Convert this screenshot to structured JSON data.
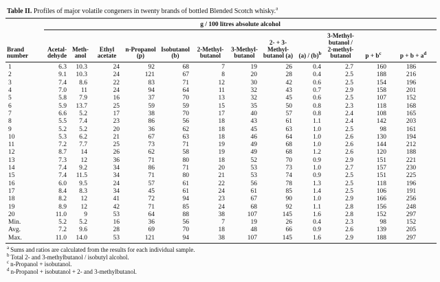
{
  "table": {
    "title": {
      "label": "Table II.",
      "text": "Profiles of major volatile congeners in twenty brands of bottled Blended Scotch whisky.",
      "sup": "a"
    },
    "unit_header": "g / 100 litres absolute alcohol",
    "columns": [
      {
        "label": "Brand\nnumber",
        "sup": ""
      },
      {
        "label": "Acetal-\ndehyde",
        "sup": ""
      },
      {
        "label": "Meth-\nanol",
        "sup": ""
      },
      {
        "label": "Ethyl\nacetate",
        "sup": ""
      },
      {
        "label": "n-Propanol\n(p)",
        "sup": ""
      },
      {
        "label": "Isobutanol\n(b)",
        "sup": ""
      },
      {
        "label": "2-Methyl-\nbutanol",
        "sup": ""
      },
      {
        "label": "3-Methyl-\nbutanol",
        "sup": ""
      },
      {
        "label": "2- + 3-\nMethyl-\nbutanol (a)",
        "sup": ""
      },
      {
        "label": "(a) / (b)",
        "sup": "b"
      },
      {
        "label": "3-Methyl-\nbutanol /\n2-methyl-\nbutanol",
        "sup": ""
      },
      {
        "label": "p + b",
        "sup": "c"
      },
      {
        "label": "p + b + a",
        "sup": "d"
      }
    ],
    "rows": [
      [
        "1",
        "6.3",
        "10.3",
        "24",
        "92",
        "68",
        "7",
        "19",
        "26",
        "0.4",
        "2.7",
        "160",
        "186"
      ],
      [
        "2",
        "9.1",
        "10.3",
        "24",
        "121",
        "67",
        "8",
        "20",
        "28",
        "0.4",
        "2.5",
        "188",
        "216"
      ],
      [
        "3",
        "7.4",
        "8.6",
        "22",
        "83",
        "71",
        "12",
        "30",
        "42",
        "0.6",
        "2.5",
        "154",
        "196"
      ],
      [
        "4",
        "7.0",
        "11",
        "24",
        "94",
        "64",
        "11",
        "32",
        "43",
        "0.7",
        "2.9",
        "158",
        "201"
      ],
      [
        "5",
        "5.8",
        "7.9",
        "16",
        "37",
        "70",
        "13",
        "32",
        "45",
        "0.6",
        "2.5",
        "107",
        "152"
      ],
      [
        "6",
        "5.9",
        "13.7",
        "25",
        "59",
        "59",
        "15",
        "35",
        "50",
        "0.8",
        "2.3",
        "118",
        "168"
      ],
      [
        "7",
        "6.6",
        "5.2",
        "17",
        "38",
        "70",
        "17",
        "40",
        "57",
        "0.8",
        "2.4",
        "108",
        "165"
      ],
      [
        "8",
        "5.5",
        "7.4",
        "23",
        "86",
        "56",
        "18",
        "43",
        "61",
        "1.1",
        "2.4",
        "142",
        "203"
      ],
      [
        "9",
        "5.2",
        "5.2",
        "20",
        "36",
        "62",
        "18",
        "45",
        "63",
        "1.0",
        "2.5",
        "98",
        "161"
      ],
      [
        "10",
        "5.3",
        "6.2",
        "21",
        "67",
        "63",
        "18",
        "46",
        "64",
        "1.0",
        "2.6",
        "130",
        "194"
      ],
      [
        "11",
        "7.2",
        "7.7",
        "25",
        "73",
        "71",
        "19",
        "49",
        "68",
        "1.0",
        "2.6",
        "144",
        "212"
      ],
      [
        "12",
        "8.7",
        "14",
        "26",
        "62",
        "58",
        "19",
        "49",
        "68",
        "1.2",
        "2.6",
        "120",
        "188"
      ],
      [
        "13",
        "7.3",
        "12",
        "36",
        "71",
        "80",
        "18",
        "52",
        "70",
        "0.9",
        "2.9",
        "151",
        "221"
      ],
      [
        "14",
        "7.4",
        "9.2",
        "34",
        "86",
        "71",
        "20",
        "53",
        "73",
        "1.0",
        "2.7",
        "157",
        "230"
      ],
      [
        "15",
        "7.4",
        "11.5",
        "34",
        "71",
        "80",
        "21",
        "53",
        "74",
        "0.9",
        "2.5",
        "151",
        "225"
      ],
      [
        "16",
        "6.0",
        "9.5",
        "24",
        "57",
        "61",
        "22",
        "56",
        "78",
        "1.3",
        "2.5",
        "118",
        "196"
      ],
      [
        "17",
        "8.4",
        "8.3",
        "34",
        "45",
        "61",
        "24",
        "61",
        "85",
        "1.4",
        "2.5",
        "106",
        "191"
      ],
      [
        "18",
        "8.2",
        "12",
        "41",
        "72",
        "94",
        "23",
        "67",
        "90",
        "1.0",
        "2.9",
        "166",
        "256"
      ],
      [
        "19",
        "8.9",
        "12",
        "42",
        "71",
        "85",
        "24",
        "68",
        "92",
        "1.1",
        "2.8",
        "156",
        "248"
      ],
      [
        "20",
        "11.0",
        "9",
        "53",
        "64",
        "88",
        "38",
        "107",
        "145",
        "1.6",
        "2.8",
        "152",
        "297"
      ],
      [
        "Min.",
        "5.2",
        "5.2",
        "16",
        "36",
        "56",
        "7",
        "19",
        "26",
        "0.4",
        "2.3",
        "98",
        "152"
      ],
      [
        "Avg.",
        "7.2",
        "9.6",
        "28",
        "69",
        "70",
        "18",
        "48",
        "66",
        "0.9",
        "2.6",
        "139",
        "205"
      ],
      [
        "Max.",
        "11.0",
        "14.0",
        "53",
        "121",
        "94",
        "38",
        "107",
        "145",
        "1.6",
        "2.9",
        "188",
        "297"
      ]
    ],
    "footnotes": [
      {
        "sup": "a",
        "text": "Sums and ratios are calculated from the results for each individual sample."
      },
      {
        "sup": "b",
        "text": "Total 2- and 3-methylbutanol / isobutyl alcohol."
      },
      {
        "sup": "c",
        "text": "n-Propanol + isobutanol."
      },
      {
        "sup": "d",
        "text": "n-Propanol + isobutanol + 2- and 3-methylbutanol."
      }
    ]
  },
  "colors": {
    "background": "#fcfcfc",
    "text": "#161616",
    "rule": "#1f1f1f"
  }
}
